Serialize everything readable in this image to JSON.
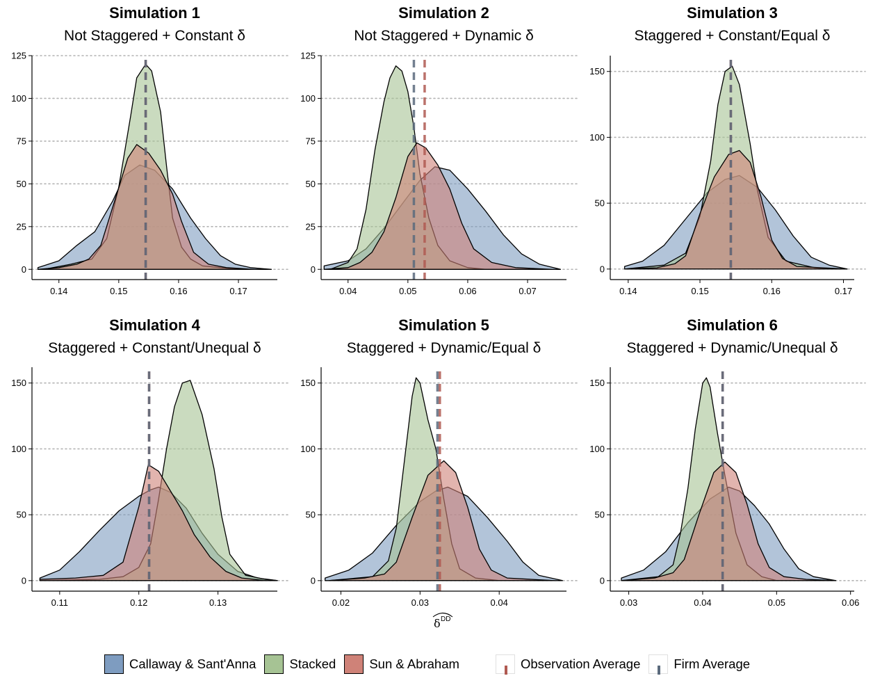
{
  "colors": {
    "callaway": "#7e9cc0",
    "stacked": "#a6c394",
    "sun": "#cf8278",
    "observation_line": "#b05a52",
    "firm_line": "#5b6b7d",
    "grid": "#b4b4b4"
  },
  "x_axis_label": "δ̂ DD",
  "x_axis_label_main": "δ",
  "x_axis_label_sup": "DD",
  "legend": {
    "callaway": "Callaway & Sant'Anna",
    "stacked": "Stacked",
    "sun": "Sun & Abraham",
    "observation": "Observation Average",
    "firm": "Firm Average"
  },
  "chart_data": [
    {
      "type": "area",
      "title": "Simulation 1",
      "subtitle": "Not Staggered + Constant δ",
      "xlim": [
        0.1355,
        0.1765
      ],
      "ylim": [
        -6,
        125
      ],
      "xticks": [
        0.14,
        0.15,
        0.16,
        0.17
      ],
      "xtick_labels": [
        "0.14",
        "0.15",
        "0.16",
        "0.17"
      ],
      "yticks": [
        0,
        25,
        50,
        75,
        100,
        125
      ],
      "grid": "horizontal dotted",
      "observation_average": 0.1545,
      "firm_average": 0.1545,
      "series": [
        {
          "name": "Callaway & Sant'Anna",
          "x": [
            0.1365,
            0.14,
            0.143,
            0.146,
            0.149,
            0.151,
            0.1535,
            0.156,
            0.159,
            0.162,
            0.1645,
            0.167,
            0.1695,
            0.172,
            0.1755
          ],
          "y": [
            1,
            5,
            14,
            22,
            40,
            55,
            61,
            58,
            47,
            30,
            18,
            8,
            3,
            1,
            0
          ]
        },
        {
          "name": "Stacked",
          "x": [
            0.1375,
            0.142,
            0.1455,
            0.148,
            0.15,
            0.152,
            0.153,
            0.1545,
            0.1555,
            0.157,
            0.158,
            0.159,
            0.1605,
            0.162,
            0.164,
            0.167,
            0.1705
          ],
          "y": [
            0,
            3,
            6,
            18,
            48,
            90,
            112,
            120,
            116,
            92,
            60,
            30,
            13,
            6,
            2,
            1,
            0
          ]
        },
        {
          "name": "Sun & Abraham",
          "x": [
            0.1365,
            0.14,
            0.143,
            0.145,
            0.147,
            0.1495,
            0.1515,
            0.153,
            0.155,
            0.157,
            0.159,
            0.1605,
            0.1625,
            0.165,
            0.168,
            0.1725
          ],
          "y": [
            0,
            1,
            3,
            6,
            14,
            42,
            65,
            73,
            68,
            58,
            44,
            28,
            10,
            3,
            1,
            0
          ]
        }
      ]
    },
    {
      "type": "area",
      "title": "Simulation 2",
      "subtitle": "Not Staggered + Dynamic δ",
      "xlim": [
        0.0355,
        0.0765
      ],
      "ylim": [
        -6,
        125
      ],
      "xticks": [
        0.04,
        0.05,
        0.06,
        0.07
      ],
      "xtick_labels": [
        "0.04",
        "0.05",
        "0.06",
        "0.07"
      ],
      "yticks": [
        0,
        25,
        50,
        75,
        100,
        125
      ],
      "grid": "horizontal dotted",
      "observation_average": 0.0528,
      "firm_average": 0.051,
      "series": [
        {
          "name": "Callaway & Sant'Anna",
          "x": [
            0.036,
            0.04,
            0.043,
            0.046,
            0.049,
            0.052,
            0.0545,
            0.057,
            0.06,
            0.063,
            0.066,
            0.069,
            0.072,
            0.0755
          ],
          "y": [
            2,
            5,
            12,
            24,
            38,
            52,
            60,
            58,
            47,
            34,
            20,
            9,
            3,
            0
          ]
        },
        {
          "name": "Stacked",
          "x": [
            0.037,
            0.04,
            0.0415,
            0.043,
            0.0445,
            0.046,
            0.047,
            0.048,
            0.049,
            0.05,
            0.051,
            0.052,
            0.0535,
            0.055,
            0.057,
            0.06,
            0.063
          ],
          "y": [
            0,
            4,
            12,
            35,
            70,
            98,
            112,
            119,
            116,
            104,
            83,
            56,
            30,
            14,
            5,
            1,
            0
          ]
        },
        {
          "name": "Sun & Abraham",
          "x": [
            0.036,
            0.04,
            0.042,
            0.044,
            0.046,
            0.048,
            0.05,
            0.0515,
            0.053,
            0.055,
            0.057,
            0.059,
            0.061,
            0.064,
            0.068,
            0.074
          ],
          "y": [
            0,
            1,
            4,
            10,
            22,
            42,
            66,
            74,
            71,
            61,
            47,
            27,
            12,
            4,
            1,
            0
          ]
        }
      ]
    },
    {
      "type": "area",
      "title": "Simulation 3",
      "subtitle": "Staggered + Constant/Equal δ",
      "xlim": [
        0.1375,
        0.1715
      ],
      "ylim": [
        -8,
        162
      ],
      "xticks": [
        0.14,
        0.15,
        0.16,
        0.17
      ],
      "xtick_labels": [
        "0.14",
        "0.15",
        "0.16",
        "0.17"
      ],
      "yticks": [
        0,
        50,
        100,
        150
      ],
      "grid": "horizontal dotted",
      "observation_average": 0.1543,
      "firm_average": 0.1543,
      "series": [
        {
          "name": "Callaway & Sant'Anna",
          "x": [
            0.1395,
            0.142,
            0.145,
            0.148,
            0.151,
            0.1535,
            0.1555,
            0.158,
            0.1605,
            0.163,
            0.1655,
            0.168,
            0.1705
          ],
          "y": [
            2,
            6,
            18,
            38,
            58,
            68,
            71,
            62,
            45,
            25,
            9,
            3,
            0
          ]
        },
        {
          "name": "Stacked",
          "x": [
            0.1395,
            0.145,
            0.148,
            0.15,
            0.1515,
            0.1525,
            0.1535,
            0.1545,
            0.1555,
            0.157,
            0.158,
            0.1595,
            0.162,
            0.166,
            0.17
          ],
          "y": [
            0,
            3,
            12,
            40,
            82,
            125,
            150,
            154,
            140,
            95,
            60,
            24,
            6,
            1,
            0
          ]
        },
        {
          "name": "Sun & Abraham",
          "x": [
            0.1395,
            0.144,
            0.1465,
            0.148,
            0.15,
            0.152,
            0.154,
            0.1555,
            0.157,
            0.1585,
            0.16,
            0.1615,
            0.1635,
            0.167,
            0.1705
          ],
          "y": [
            0,
            1,
            4,
            10,
            42,
            70,
            87,
            90,
            81,
            55,
            22,
            8,
            2,
            1,
            0
          ]
        }
      ]
    },
    {
      "type": "area",
      "title": "Simulation 4",
      "subtitle": "Staggered + Constant/Unequal δ",
      "xlim": [
        0.1065,
        0.1375
      ],
      "ylim": [
        -8,
        162
      ],
      "xticks": [
        0.11,
        0.12,
        0.13
      ],
      "xtick_labels": [
        "0.11",
        "0.12",
        "0.13"
      ],
      "yticks": [
        0,
        50,
        100,
        150
      ],
      "grid": "horizontal dotted",
      "observation_average": 0.1213,
      "firm_average": 0.1213,
      "series": [
        {
          "name": "Callaway & Sant'Anna",
          "x": [
            0.1075,
            0.11,
            0.1125,
            0.115,
            0.1175,
            0.12,
            0.1215,
            0.1225,
            0.124,
            0.126,
            0.128,
            0.13,
            0.1325,
            0.135,
            0.1375
          ],
          "y": [
            2,
            8,
            22,
            38,
            53,
            64,
            69,
            71,
            67,
            55,
            36,
            20,
            7,
            2,
            0
          ]
        },
        {
          "name": "Stacked",
          "x": [
            0.1075,
            0.115,
            0.118,
            0.12,
            0.1215,
            0.1225,
            0.1235,
            0.1245,
            0.1255,
            0.1265,
            0.128,
            0.1295,
            0.1305,
            0.1315,
            0.1335,
            0.136,
            0.1375
          ],
          "y": [
            0,
            1,
            3,
            10,
            28,
            62,
            100,
            132,
            150,
            152,
            126,
            85,
            48,
            20,
            4,
            1,
            0
          ]
        },
        {
          "name": "Sun & Abraham",
          "x": [
            0.1075,
            0.112,
            0.1155,
            0.118,
            0.12,
            0.1212,
            0.1225,
            0.124,
            0.1255,
            0.127,
            0.129,
            0.131,
            0.133,
            0.136
          ],
          "y": [
            1,
            2,
            4,
            14,
            56,
            88,
            83,
            68,
            53,
            35,
            18,
            7,
            2,
            0
          ]
        }
      ]
    },
    {
      "type": "area",
      "title": "Simulation 5",
      "subtitle": "Staggered + Dynamic/Equal δ",
      "xlim": [
        0.0175,
        0.0485
      ],
      "ylim": [
        -8,
        162
      ],
      "xticks": [
        0.02,
        0.03,
        0.04
      ],
      "xtick_labels": [
        "0.02",
        "0.03",
        "0.04"
      ],
      "yticks": [
        0,
        50,
        100,
        150
      ],
      "grid": "horizontal dotted",
      "observation_average": 0.0325,
      "firm_average": 0.0322,
      "series": [
        {
          "name": "Callaway & Sant'Anna",
          "x": [
            0.018,
            0.021,
            0.024,
            0.027,
            0.03,
            0.032,
            0.0335,
            0.036,
            0.0385,
            0.041,
            0.043,
            0.045,
            0.048
          ],
          "y": [
            2,
            8,
            21,
            42,
            60,
            68,
            71,
            64,
            48,
            30,
            14,
            4,
            0
          ]
        },
        {
          "name": "Stacked",
          "x": [
            0.0185,
            0.024,
            0.026,
            0.027,
            0.028,
            0.029,
            0.0295,
            0.03,
            0.031,
            0.032,
            0.033,
            0.034,
            0.035,
            0.037,
            0.04
          ],
          "y": [
            0,
            3,
            15,
            40,
            90,
            140,
            154,
            150,
            122,
            100,
            62,
            28,
            9,
            2,
            0
          ]
        },
        {
          "name": "Sun & Abraham",
          "x": [
            0.0185,
            0.023,
            0.0255,
            0.027,
            0.029,
            0.031,
            0.033,
            0.0345,
            0.036,
            0.0375,
            0.039,
            0.041,
            0.044,
            0.047
          ],
          "y": [
            0,
            2,
            5,
            14,
            48,
            80,
            91,
            82,
            56,
            24,
            8,
            2,
            1,
            0
          ]
        }
      ]
    },
    {
      "type": "area",
      "title": "Simulation 6",
      "subtitle": "Staggered + Dynamic/Unequal δ",
      "xlim": [
        0.0275,
        0.0605
      ],
      "ylim": [
        -8,
        162
      ],
      "xticks": [
        0.03,
        0.04,
        0.05,
        0.06
      ],
      "xtick_labels": [
        "0.03",
        "0.04",
        "0.05",
        "0.06"
      ],
      "yticks": [
        0,
        50,
        100,
        150
      ],
      "grid": "horizontal dotted",
      "observation_average": 0.0427,
      "firm_average": 0.0427,
      "series": [
        {
          "name": "Callaway & Sant'Anna",
          "x": [
            0.029,
            0.032,
            0.035,
            0.038,
            0.041,
            0.0435,
            0.045,
            0.047,
            0.049,
            0.051,
            0.053,
            0.055,
            0.058
          ],
          "y": [
            2,
            8,
            22,
            44,
            62,
            71,
            68,
            57,
            43,
            24,
            9,
            3,
            0
          ]
        },
        {
          "name": "Stacked",
          "x": [
            0.029,
            0.034,
            0.036,
            0.037,
            0.038,
            0.039,
            0.04,
            0.0405,
            0.041,
            0.042,
            0.043,
            0.0445,
            0.046,
            0.048,
            0.05
          ],
          "y": [
            0,
            3,
            12,
            36,
            70,
            115,
            150,
            154,
            147,
            112,
            80,
            36,
            12,
            3,
            0
          ]
        },
        {
          "name": "Sun & Abraham",
          "x": [
            0.029,
            0.0335,
            0.036,
            0.0375,
            0.0395,
            0.0415,
            0.043,
            0.0445,
            0.046,
            0.0475,
            0.049,
            0.051,
            0.054,
            0.058
          ],
          "y": [
            0,
            2,
            6,
            16,
            50,
            82,
            90,
            82,
            58,
            28,
            10,
            3,
            1,
            0
          ]
        }
      ]
    }
  ]
}
